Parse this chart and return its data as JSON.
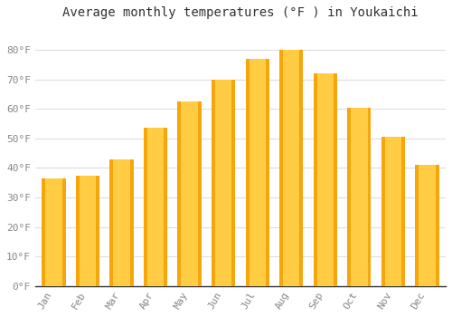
{
  "title": "Average monthly temperatures (°F ) in Youkaichi",
  "months": [
    "Jan",
    "Feb",
    "Mar",
    "Apr",
    "May",
    "Jun",
    "Jul",
    "Aug",
    "Sep",
    "Oct",
    "Nov",
    "Dec"
  ],
  "values": [
    36.5,
    37.5,
    43,
    53.5,
    62.5,
    70,
    77,
    80,
    72,
    60.5,
    50.5,
    41
  ],
  "bar_color_light": "#FFCC44",
  "bar_color_dark": "#F5A000",
  "ylim": [
    0,
    88
  ],
  "yticks": [
    0,
    10,
    20,
    30,
    40,
    50,
    60,
    70,
    80
  ],
  "ytick_labels": [
    "0°F",
    "10°F",
    "20°F",
    "30°F",
    "40°F",
    "50°F",
    "60°F",
    "70°F",
    "80°F"
  ],
  "background_color": "#FFFFFF",
  "grid_color": "#DDDDDD",
  "title_fontsize": 10,
  "tick_fontsize": 8,
  "tick_color": "#888888",
  "font_family": "monospace"
}
